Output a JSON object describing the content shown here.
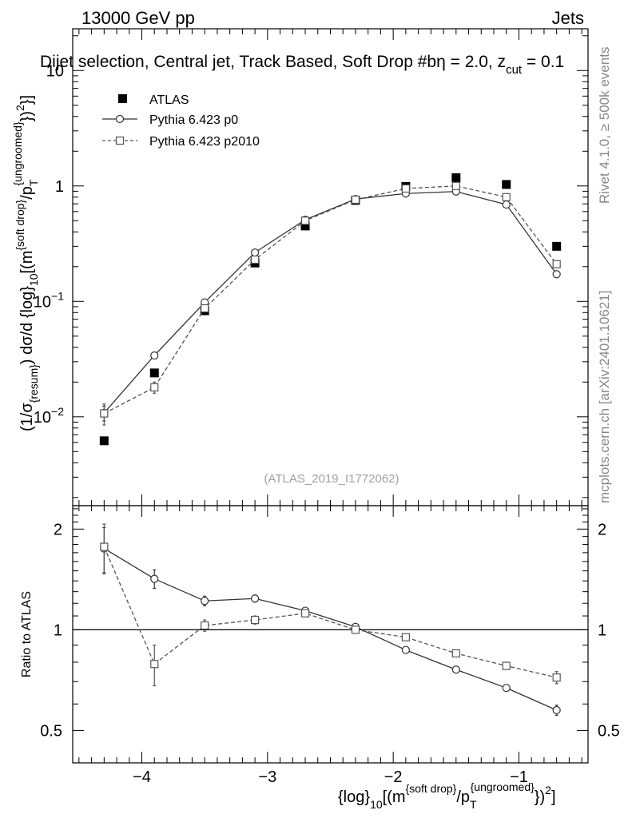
{
  "header": {
    "left": "13000 GeV pp",
    "right": "Jets",
    "selection": "Dijet selection, Central jet, Track Based, Soft Drop #b",
    "selection_tail": "η = 2.0, z",
    "selection_sub": "cut",
    "selection_end": " = 0.1"
  },
  "side": {
    "rivet": "Rivet 4.1.0, ≥ 500k events",
    "mcplots": "mcplots.cern.ch [arXiv:2401.10621]"
  },
  "analysis_id": "(ATLAS_2019_I1772062)",
  "legend": {
    "atlas": "ATLAS",
    "p0": "Pythia 6.423 p0",
    "p2010": "Pythia 6.423 p2010"
  },
  "axes": {
    "ylabel_top": {
      "a": "(1/σ",
      "a_sub": "{resum}",
      "b": ") dσ/d {log}",
      "b_sub": "10",
      "c": "[(m",
      "c_sup": "{soft drop}",
      "d": "/p",
      "d_sub": "T",
      "d_sup": "{ungroomed}",
      "e": "})",
      "e_sup": "2",
      "f": "}]"
    },
    "ylabel_bottom": "Ratio to ATLAS",
    "xlabel": {
      "a": "{log}",
      "a_sub": "10",
      "b": "[(m",
      "b_sup": "{soft drop}",
      "c": "/p",
      "c_sub": "T",
      "c_sup": "{ungroomed}",
      "d": "})",
      "d_sup": "2",
      "e": "]"
    },
    "xticks": [
      "−4",
      "−3",
      "−2",
      "−1"
    ],
    "yticks_top": {
      "base": "10",
      "exps": [
        "−2",
        "−1",
        "",
        ""
      ],
      "plain": [
        "",
        "",
        "1",
        "10"
      ]
    },
    "yticks_bottom": [
      "0.5",
      "1",
      "2"
    ]
  },
  "chart_data": [
    {
      "type": "scatter",
      "title": "Dijet selection, Central jet, Track Based, Soft Drop",
      "xlabel": "{log}10[(m{soft drop}/pT{ungroomed})^2]",
      "ylabel": "(1/σ{resum}) dσ/d {log}10[(m{soft drop}/pT{ungroomed})^2]",
      "xlim": [
        -4.55,
        -0.45
      ],
      "ylim": [
        0.0017,
        23
      ],
      "yscale": "log",
      "x": [
        -4.3,
        -3.9,
        -3.5,
        -3.1,
        -2.7,
        -2.3,
        -1.9,
        -1.5,
        -1.1,
        -0.7
      ],
      "series": [
        {
          "name": "ATLAS",
          "style": "marker",
          "values": [
            0.0062,
            0.024,
            0.083,
            0.215,
            0.45,
            0.75,
            0.99,
            1.18,
            1.03,
            0.3
          ]
        },
        {
          "name": "Pythia 6.423 p0",
          "style": "solid-circle",
          "values": [
            0.0108,
            0.034,
            0.098,
            0.265,
            0.51,
            0.77,
            0.86,
            0.895,
            0.69,
            0.172
          ],
          "errors": [
            0.0016,
            0.0018,
            0.002,
            0.005,
            0.008,
            0.01,
            0.012,
            0.012,
            0.01,
            0.005
          ]
        },
        {
          "name": "Pythia 6.423 p2010",
          "style": "dashed-square",
          "values": [
            0.0107,
            0.018,
            0.087,
            0.23,
            0.5,
            0.76,
            0.95,
            1.0,
            0.8,
            0.21
          ],
          "errors": [
            0.0022,
            0.002,
            0.003,
            0.005,
            0.008,
            0.01,
            0.012,
            0.012,
            0.01,
            0.006
          ]
        }
      ]
    },
    {
      "type": "line",
      "ylabel": "Ratio to ATLAS",
      "xlim": [
        -4.55,
        -0.45
      ],
      "ylim": [
        0.4,
        2.35
      ],
      "yscale": "log",
      "reference": 1.0,
      "x": [
        -4.3,
        -3.9,
        -3.5,
        -3.1,
        -2.7,
        -2.3,
        -1.9,
        -1.5,
        -1.1,
        -0.7
      ],
      "series": [
        {
          "name": "Pythia 6.423 p0",
          "style": "solid-circle",
          "values": [
            1.75,
            1.42,
            1.22,
            1.24,
            1.14,
            1.02,
            0.87,
            0.76,
            0.67,
            0.575
          ],
          "errors": [
            0.27,
            0.09,
            0.04,
            0.03,
            0.02,
            0.02,
            0.01,
            0.01,
            0.01,
            0.02
          ]
        },
        {
          "name": "Pythia 6.423 p2010",
          "style": "dashed-square",
          "values": [
            1.77,
            0.79,
            1.03,
            1.07,
            1.12,
            1.0,
            0.95,
            0.85,
            0.78,
            0.72
          ],
          "errors": [
            0.3,
            0.11,
            0.04,
            0.03,
            0.02,
            0.02,
            0.01,
            0.01,
            0.01,
            0.03
          ]
        }
      ]
    }
  ]
}
